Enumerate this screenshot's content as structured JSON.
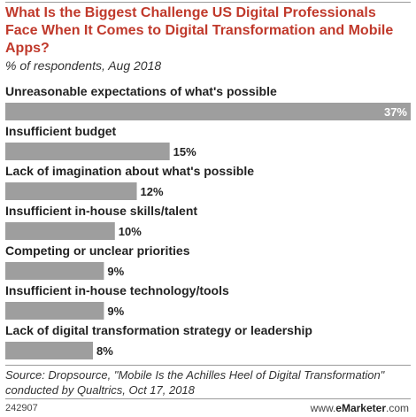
{
  "chart_data": {
    "type": "bar",
    "orientation": "horizontal",
    "title": "What Is the Biggest Challenge US Digital Professionals Face When It Comes to Digital Transformation and Mobile Apps?",
    "subtitle": "% of respondents, Aug 2018",
    "categories": [
      "Unreasonable expectations of what's possible",
      "Insufficient budget",
      "Lack of imagination about what's possible",
      "Insufficient in-house skills/talent",
      "Competing or unclear priorities",
      "Insufficient in-house technology/tools",
      "Lack of digital transformation strategy or leadership"
    ],
    "values": [
      37,
      15,
      12,
      10,
      9,
      9,
      8
    ],
    "value_labels": [
      "37%",
      "15%",
      "12%",
      "10%",
      "9%",
      "9%",
      "8%"
    ],
    "xlim": [
      0,
      37
    ],
    "grid": false,
    "bar_color": "#9e9e9e",
    "title_color": "#c0392b"
  },
  "source": {
    "line1": "Source: Dropsource, \"Mobile Is the Achilles Heel of Digital Transformation\"",
    "line2": "conducted by Qualtrics, Oct 17, 2018"
  },
  "footer": {
    "id": "242907",
    "brand_prefix": "www.",
    "brand_name": "eMarketer",
    "brand_suffix": ".com"
  }
}
